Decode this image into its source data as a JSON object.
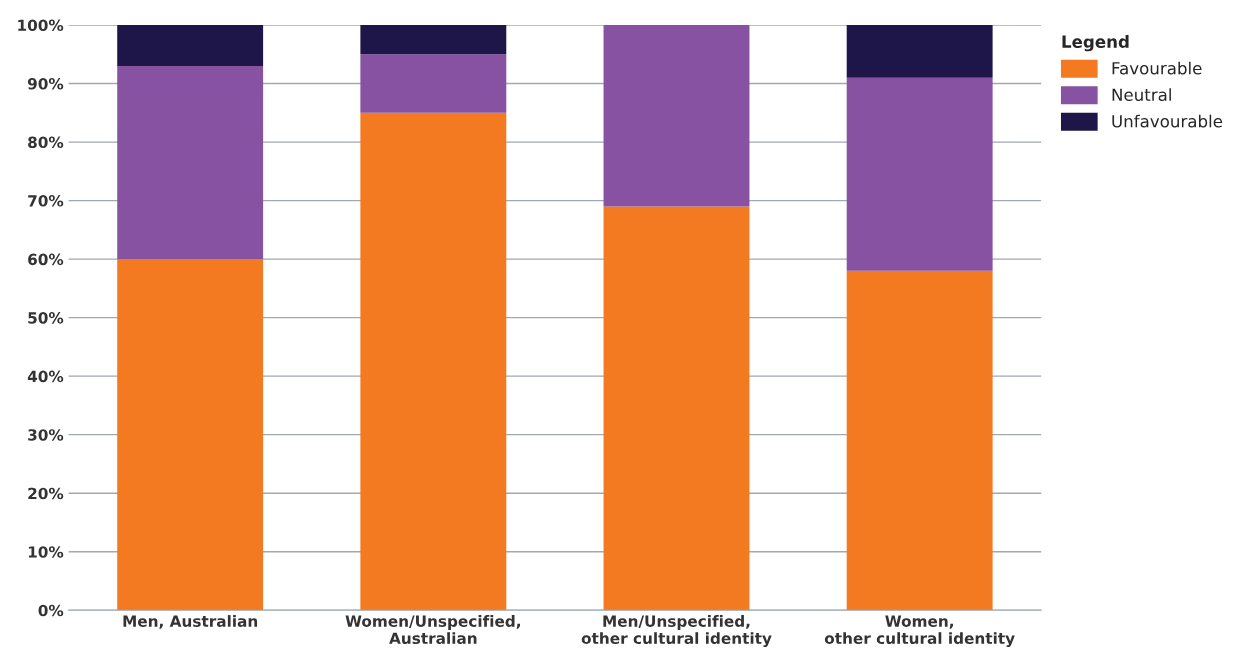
{
  "chart_data": {
    "type": "bar",
    "stacked": true,
    "categories": [
      "Men, Australian",
      "Women/Unspecified,\nAustralian",
      "Men/Unspecified,\nother cultural identity",
      "Women,\nother cultural identity"
    ],
    "series": [
      {
        "name": "Favourable",
        "color": "#f47a22",
        "values": [
          60,
          85,
          69,
          58
        ]
      },
      {
        "name": "Neutral",
        "color": "#8652a1",
        "values": [
          33,
          10,
          31,
          33
        ]
      },
      {
        "name": "Unfavourable",
        "color": "#1e1548",
        "values": [
          7,
          5,
          0,
          9
        ]
      }
    ],
    "ylim": [
      0,
      100
    ],
    "yticks": [
      {
        "value": 0,
        "label": "0%"
      },
      {
        "value": 10,
        "label": "10%"
      },
      {
        "value": 20,
        "label": "20%"
      },
      {
        "value": 30,
        "label": "30%"
      },
      {
        "value": 40,
        "label": "40%"
      },
      {
        "value": 50,
        "label": "50%"
      },
      {
        "value": 60,
        "label": "60%"
      },
      {
        "value": 70,
        "label": "70%"
      },
      {
        "value": 80,
        "label": "80%"
      },
      {
        "value": 90,
        "label": "90%"
      },
      {
        "value": 100,
        "label": "100%"
      }
    ],
    "grid": "y",
    "legend": "top right",
    "legend_title": "Legend"
  }
}
